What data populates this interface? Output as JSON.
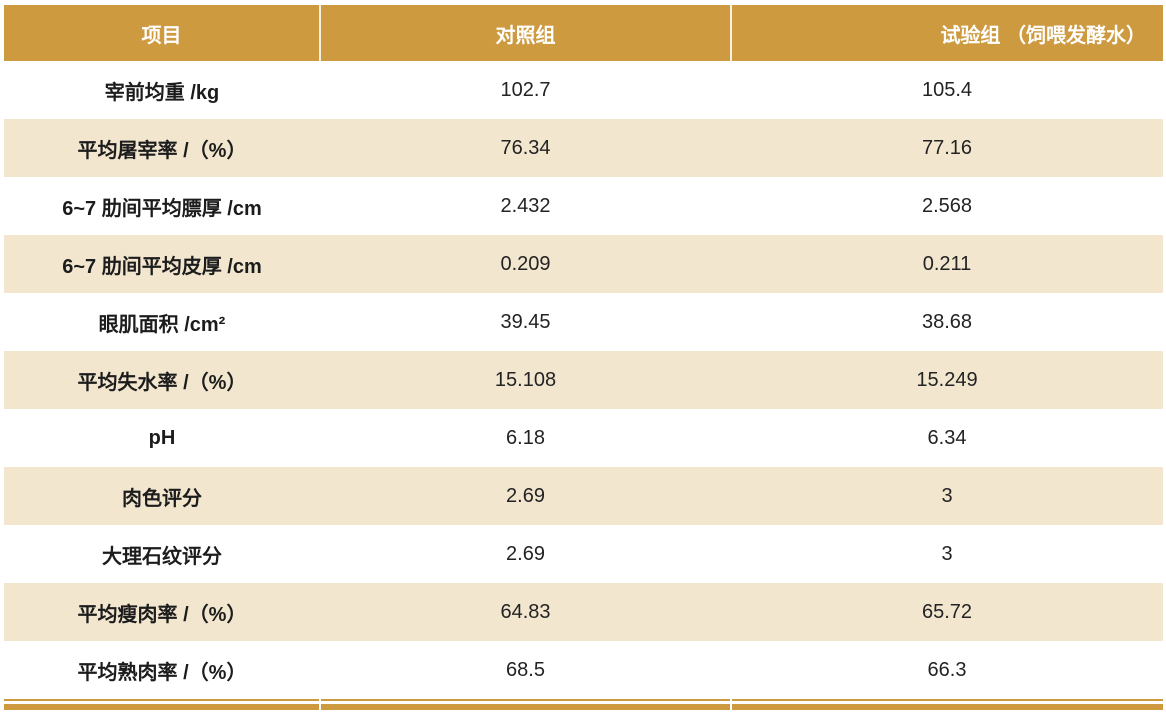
{
  "table": {
    "columns": [
      {
        "label": "项目"
      },
      {
        "label": "对照组"
      },
      {
        "label": "试验组 （饲喂发酵水）"
      }
    ],
    "rows": [
      {
        "item": "宰前均重 /kg",
        "control": "102.7",
        "test": "105.4"
      },
      {
        "item": "平均屠宰率 /（%）",
        "control": "76.34",
        "test": "77.16"
      },
      {
        "item": "6~7 肋间平均膘厚 /cm",
        "control": "2.432",
        "test": "2.568"
      },
      {
        "item": "6~7 肋间平均皮厚 /cm",
        "control": "0.209",
        "test": "0.211"
      },
      {
        "item": "眼肌面积 /cm²",
        "control": "39.45",
        "test": "38.68"
      },
      {
        "item": "平均失水率 /（%）",
        "control": "15.108",
        "test": "15.249"
      },
      {
        "item": "pH",
        "control": "6.18",
        "test": "6.34"
      },
      {
        "item": "肉色评分",
        "control": "2.69",
        "test": "3"
      },
      {
        "item": "大理石纹评分",
        "control": "2.69",
        "test": "3"
      },
      {
        "item": "平均瘦肉率 /（%）",
        "control": "64.83",
        "test": "65.72"
      },
      {
        "item": "平均熟肉率 /（%）",
        "control": "68.5",
        "test": "66.3"
      }
    ],
    "colors": {
      "header_bg": "#cd9a40",
      "header_text": "#ffffff",
      "row_alt_bg": "#f2e6cf",
      "row_bg": "#ffffff",
      "body_text": "#232323",
      "header_divider": "#f8f1e2"
    }
  }
}
